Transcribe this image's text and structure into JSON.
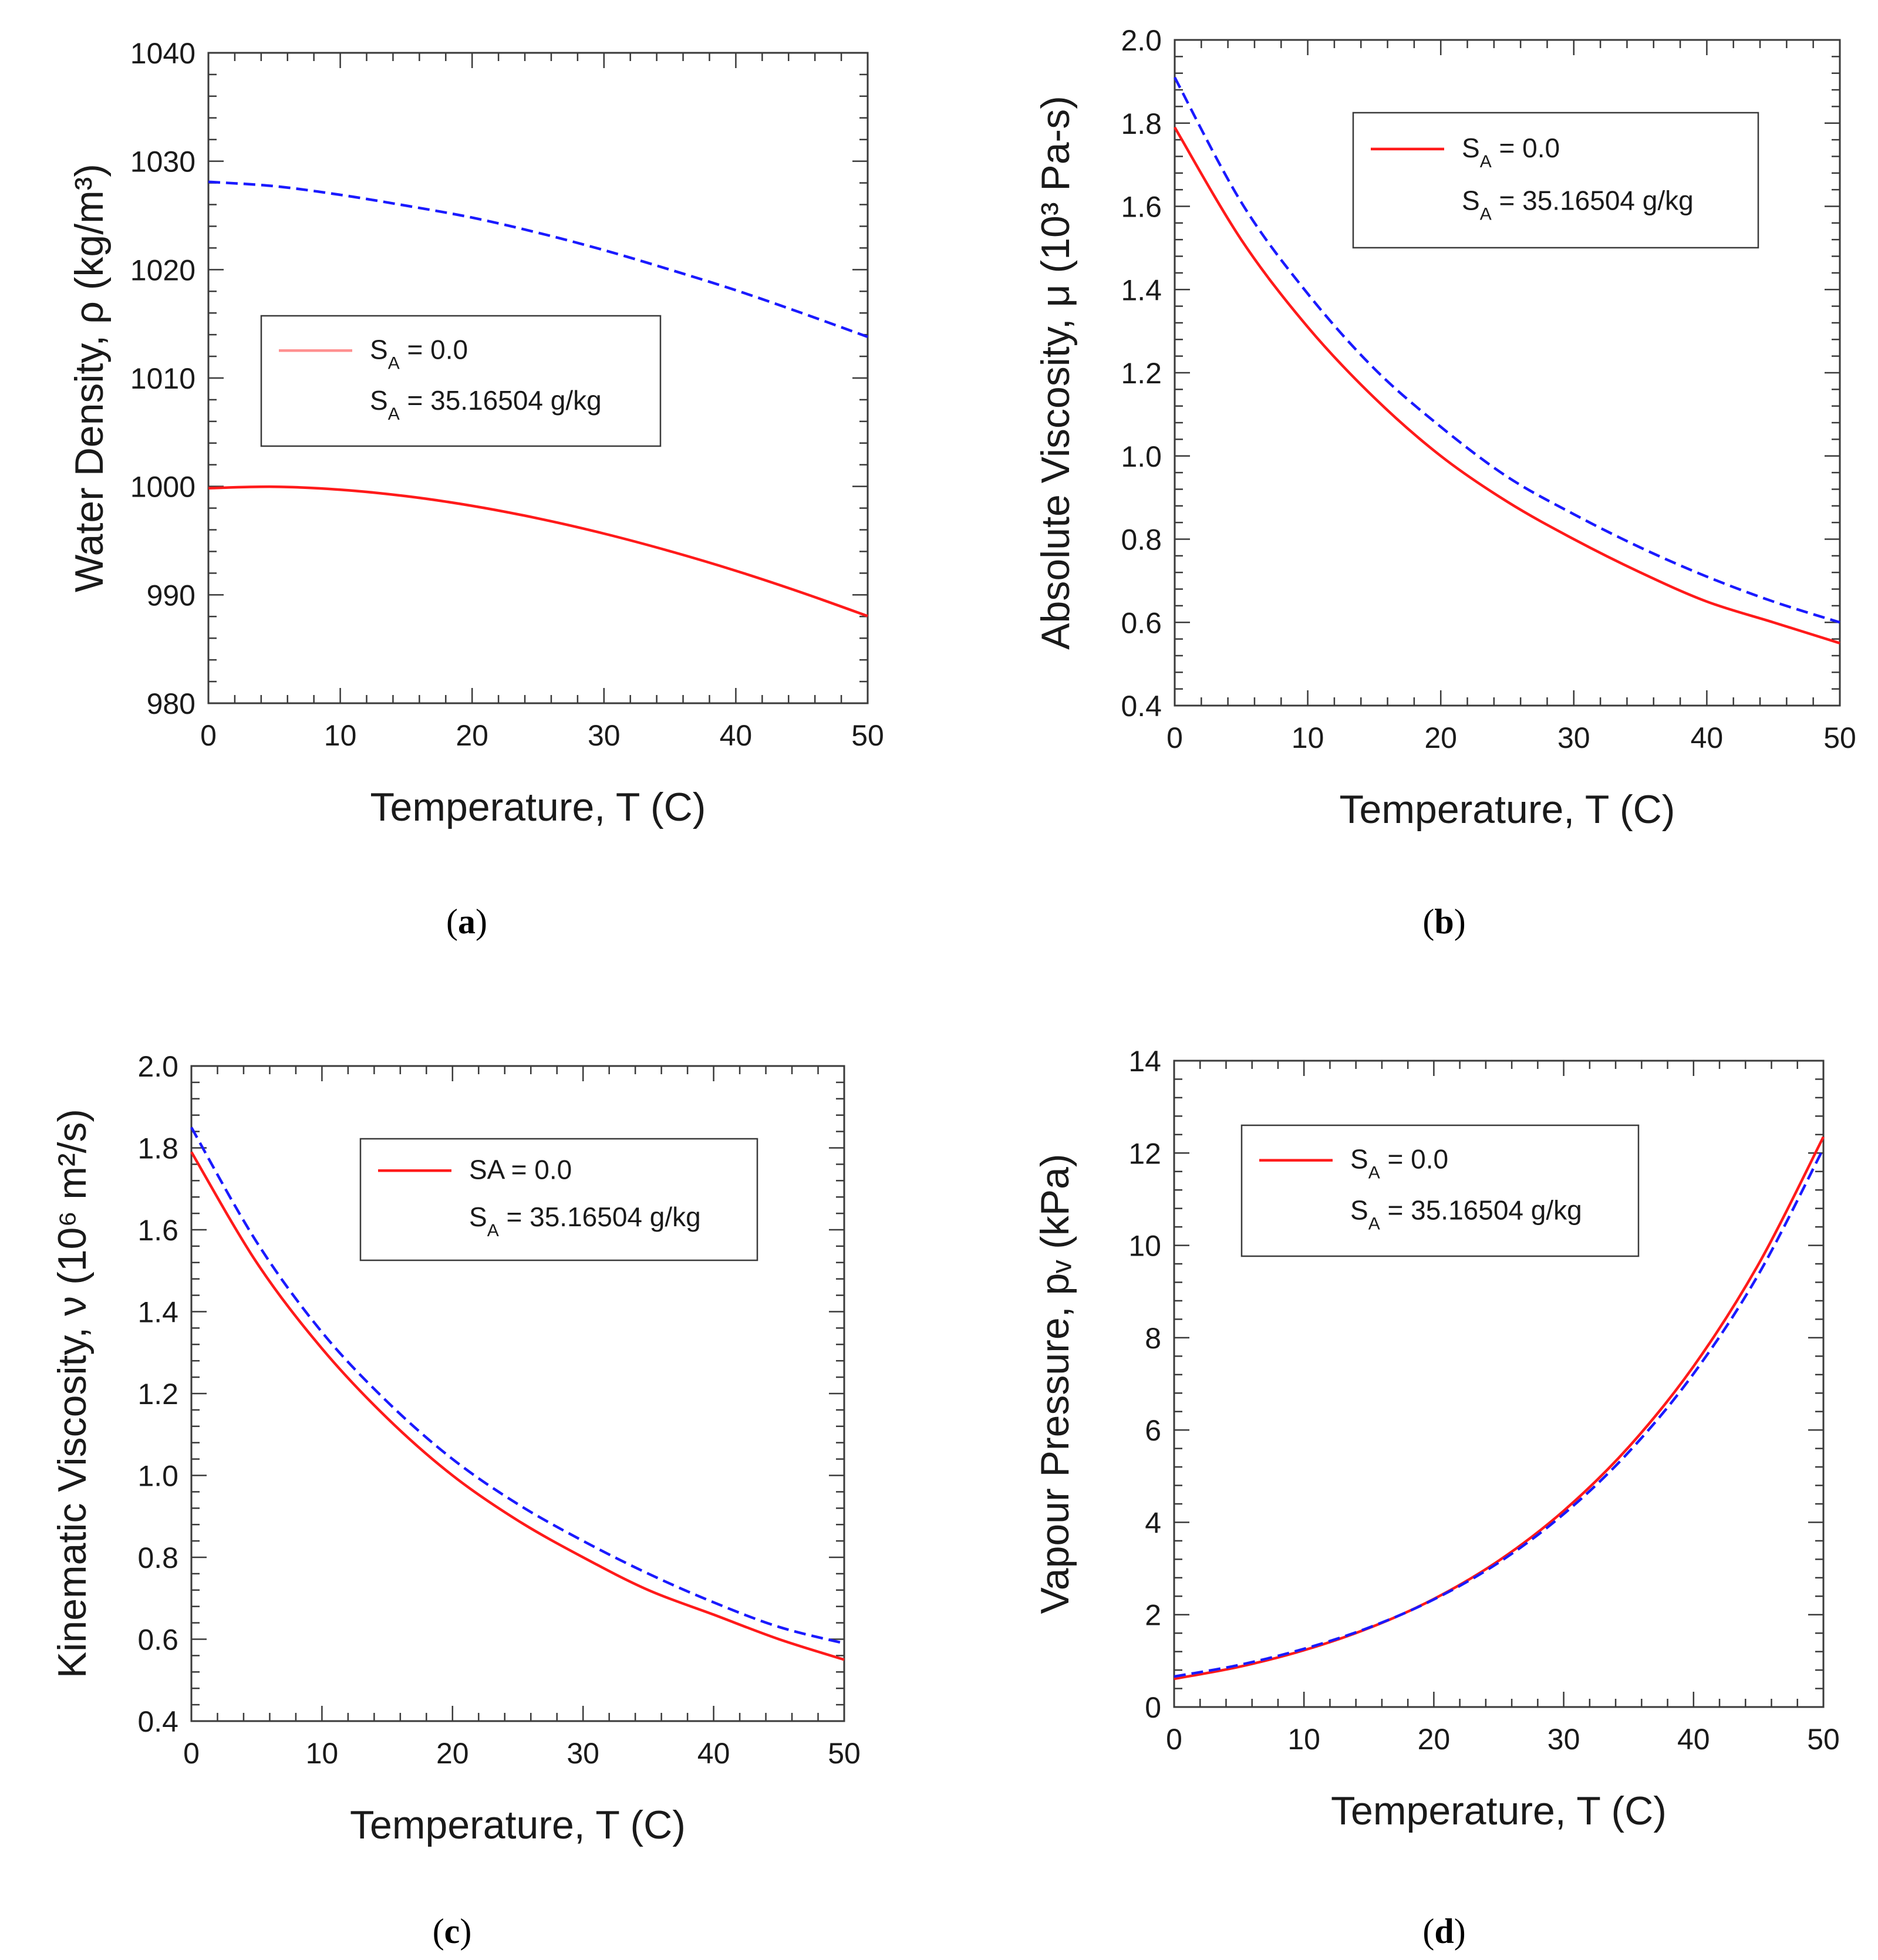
{
  "colors": {
    "s0": "#ff1a1a",
    "s35": "#1a1aff",
    "axis": "#3a3a3a"
  },
  "chart_data": [
    {
      "id": "a",
      "type": "line",
      "caption": "a",
      "xlabel": "Temperature, T (C)",
      "ylabel": "Water Density, ρ (kg/m³)",
      "xlim": [
        0,
        50
      ],
      "ylim": [
        980,
        1040
      ],
      "xticks": [
        0,
        10,
        20,
        30,
        40,
        50
      ],
      "yticks": [
        980,
        990,
        1000,
        1010,
        1020,
        1030,
        1040
      ],
      "x": [
        0,
        5,
        10,
        15,
        20,
        25,
        30,
        35,
        40,
        45,
        50
      ],
      "series": [
        {
          "name": "S_A = 0.0",
          "label_main": "S",
          "label_sub": "A",
          "label_rest": " = 0.0",
          "color_key": "s0",
          "dash": false,
          "values": [
            999.84,
            999.97,
            999.7,
            999.1,
            998.21,
            997.05,
            995.65,
            994.03,
            992.22,
            990.21,
            988.04
          ]
        },
        {
          "name": "S_A = 35.16504 g/kg",
          "label_main": "S",
          "label_sub": "A",
          "label_rest": " = 35.16504 g/kg",
          "color_key": "s35",
          "dash": true,
          "values": [
            1028.1,
            1027.7,
            1026.9,
            1025.9,
            1024.8,
            1023.4,
            1021.8,
            1020.0,
            1018.1,
            1016.0,
            1013.8
          ]
        }
      ],
      "legend": "center-left",
      "legend_style": "light"
    },
    {
      "id": "b",
      "type": "line",
      "caption": "b",
      "xlabel": "Temperature, T (C)",
      "ylabel": "Absolute Viscosity, μ (10³ Pa-s)",
      "xlim": [
        0,
        50
      ],
      "ylim": [
        0.4,
        2.0
      ],
      "xticks": [
        0,
        10,
        20,
        30,
        40,
        50
      ],
      "yticks": [
        "0.4",
        "0.6",
        "0.8",
        "1.0",
        "1.2",
        "1.4",
        "1.6",
        "1.8",
        "2.0"
      ],
      "x": [
        0,
        5,
        10,
        15,
        20,
        25,
        30,
        35,
        40,
        45,
        50
      ],
      "series": [
        {
          "name": "S_A = 0.0",
          "label_main": "S",
          "label_sub": "A",
          "label_rest": " = 0.0",
          "color_key": "s0",
          "dash": false,
          "values": [
            1.79,
            1.52,
            1.31,
            1.14,
            1.0,
            0.89,
            0.8,
            0.72,
            0.65,
            0.6,
            0.55
          ]
        },
        {
          "name": "S_A = 35.16504 g/kg",
          "label_main": "S",
          "label_sub": "A",
          "label_rest": " = 35.16504 g/kg",
          "color_key": "s35",
          "dash": true,
          "values": [
            1.91,
            1.61,
            1.39,
            1.21,
            1.07,
            0.95,
            0.86,
            0.78,
            0.71,
            0.65,
            0.6
          ]
        }
      ],
      "legend": "top-right",
      "legend_style": "normal"
    },
    {
      "id": "c",
      "type": "line",
      "caption": "c",
      "xlabel": "Temperature, T (C)",
      "ylabel": "Kinematic Viscosity, ν (10⁶ m²/s)",
      "xlim": [
        0,
        50
      ],
      "ylim": [
        0.4,
        2.0
      ],
      "xticks": [
        0,
        10,
        20,
        30,
        40,
        50
      ],
      "yticks": [
        "0.4",
        "0.6",
        "0.8",
        "1.0",
        "1.2",
        "1.4",
        "1.6",
        "1.8",
        "2.0"
      ],
      "x": [
        0,
        5,
        10,
        15,
        20,
        25,
        30,
        35,
        40,
        45,
        50
      ],
      "series": [
        {
          "name": "SA = 0.0",
          "label_main": "SA = 0.0",
          "label_sub": "",
          "label_rest": "",
          "color_key": "s0",
          "dash": false,
          "values": [
            1.79,
            1.52,
            1.31,
            1.14,
            1.0,
            0.89,
            0.8,
            0.72,
            0.66,
            0.6,
            0.55
          ]
        },
        {
          "name": "S_A = 35.16504 g/kg",
          "label_main": "S",
          "label_sub": "A",
          "label_rest": " = 35.16504 g/kg",
          "color_key": "s35",
          "dash": true,
          "values": [
            1.85,
            1.57,
            1.35,
            1.18,
            1.04,
            0.93,
            0.84,
            0.76,
            0.69,
            0.63,
            0.59
          ]
        }
      ],
      "legend": "top-right",
      "legend_style": "normal"
    },
    {
      "id": "d",
      "type": "line",
      "caption": "d",
      "xlabel": "Temperature, T (C)",
      "ylabel": "Vapour Pressure, pᵥ (kPa)",
      "xlim": [
        0,
        50
      ],
      "ylim": [
        0,
        14
      ],
      "xticks": [
        0,
        10,
        20,
        30,
        40,
        50
      ],
      "yticks": [
        "0",
        "2",
        "4",
        "6",
        "8",
        "10",
        "12",
        "14"
      ],
      "x": [
        0,
        5,
        10,
        15,
        20,
        25,
        30,
        35,
        40,
        45,
        50
      ],
      "series": [
        {
          "name": "S_A = 0.0",
          "label_main": "S",
          "label_sub": "A",
          "label_rest": " = 0.0",
          "color_key": "s0",
          "dash": false,
          "values": [
            0.61,
            0.87,
            1.23,
            1.71,
            2.34,
            3.17,
            4.25,
            5.63,
            7.38,
            9.59,
            12.35
          ]
        },
        {
          "name": "S_A = 35.16504 g/kg",
          "label_main": "S",
          "label_sub": "A",
          "label_rest": " = 35.16504 g/kg",
          "color_key": "s35",
          "dash": true,
          "values": [
            0.66,
            0.91,
            1.26,
            1.72,
            2.33,
            3.13,
            4.18,
            5.52,
            7.22,
            9.37,
            12.1
          ]
        }
      ],
      "legend": "top-left",
      "legend_style": "normal"
    }
  ]
}
